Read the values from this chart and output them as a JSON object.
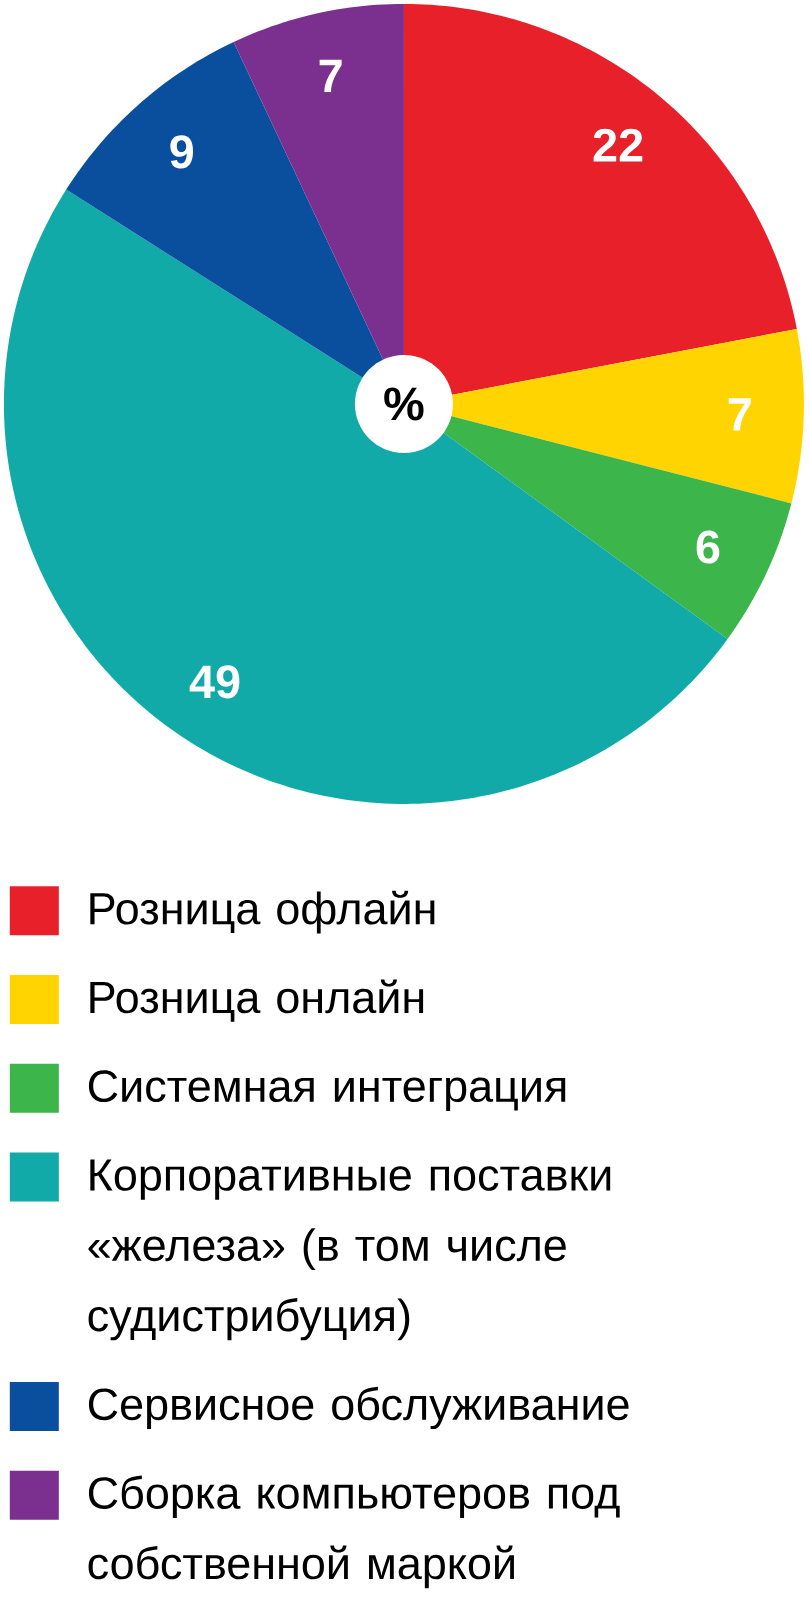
{
  "chart_data": {
    "type": "pie",
    "categories": [
      "Розница офлайн",
      "Розница онлайн",
      "Системная интеграция",
      "Корпоративные поставки «железа» (в том числе судистрибуция)",
      "Сервисное обслуживание",
      "Сборка компьютеров под собственной маркой"
    ],
    "values": [
      22,
      7,
      6,
      49,
      9,
      7
    ],
    "colors": [
      "#e8202a",
      "#ffd400",
      "#3cb54a",
      "#12aaa8",
      "#0a4f9e",
      "#7b2f8e"
    ],
    "data_labels": true,
    "legend": "bottom",
    "annotations": [
      "%"
    ]
  }
}
